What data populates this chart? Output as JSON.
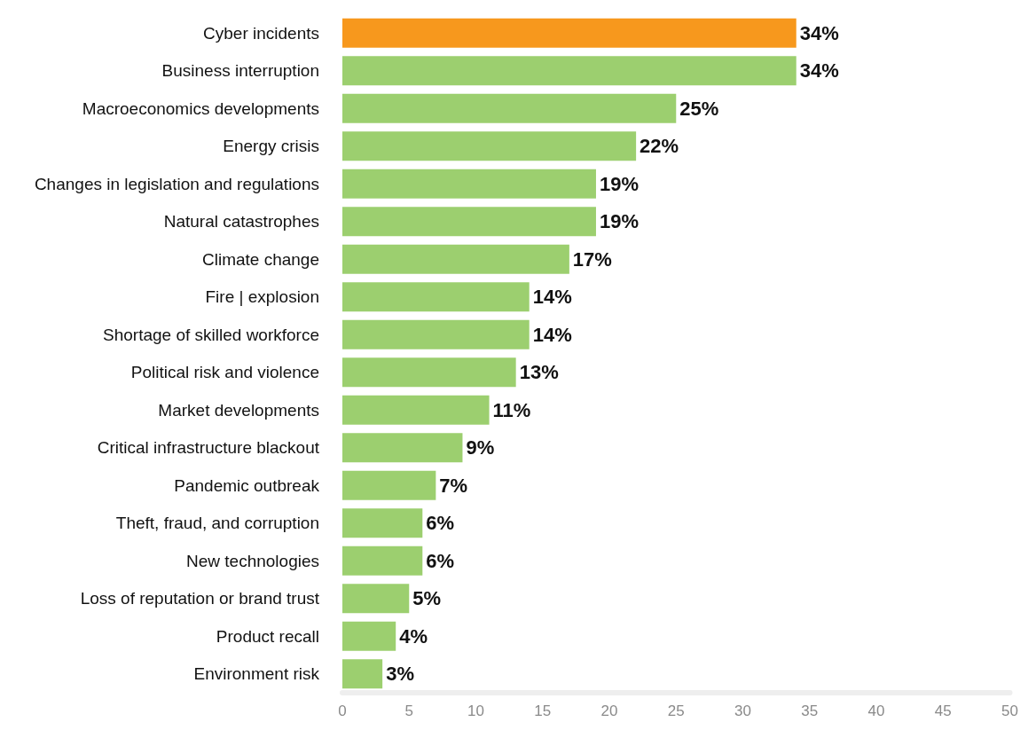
{
  "chart_data": {
    "type": "bar",
    "orientation": "horizontal",
    "categories": [
      "Cyber incidents",
      "Business interruption",
      "Macroeconomics developments",
      "Energy crisis",
      "Changes in legislation and regulations",
      "Natural catastrophes",
      "Climate change",
      "Fire | explosion",
      "Shortage of skilled workforce",
      "Political risk and violence",
      "Market developments",
      "Critical infrastructure blackout",
      "Pandemic outbreak",
      "Theft, fraud, and corruption",
      "New technologies",
      "Loss of reputation or brand trust",
      "Product recall",
      "Environment risk"
    ],
    "values": [
      34,
      34,
      25,
      22,
      19,
      19,
      17,
      14,
      14,
      13,
      11,
      9,
      7,
      6,
      6,
      5,
      4,
      3
    ],
    "colors": [
      "#f7981d",
      "#9ccf6f",
      "#9ccf6f",
      "#9ccf6f",
      "#9ccf6f",
      "#9ccf6f",
      "#9ccf6f",
      "#9ccf6f",
      "#9ccf6f",
      "#9ccf6f",
      "#9ccf6f",
      "#9ccf6f",
      "#9ccf6f",
      "#9ccf6f",
      "#9ccf6f",
      "#9ccf6f",
      "#9ccf6f",
      "#9ccf6f"
    ],
    "value_labels": [
      "34%",
      "34%",
      "25%",
      "22%",
      "19%",
      "19%",
      "17%",
      "14%",
      "14%",
      "13%",
      "11%",
      "9%",
      "7%",
      "6%",
      "6%",
      "5%",
      "4%",
      "3%"
    ],
    "xlim": [
      0,
      50
    ],
    "xticks": [
      0,
      5,
      10,
      15,
      20,
      25,
      30,
      35,
      40,
      45,
      50
    ],
    "grid": false
  }
}
